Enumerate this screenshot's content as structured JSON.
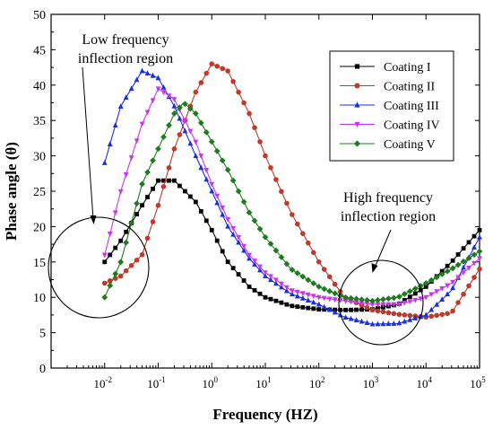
{
  "chart_data": {
    "type": "line",
    "xscale": "log",
    "xlabel": "Frequency (HZ)",
    "ylabel": "Phase angle (θ)",
    "xlim": [
      0.001,
      100000
    ],
    "ylim": [
      0,
      50
    ],
    "grid": false,
    "legend_position": "top-right",
    "yticks": [
      "0",
      "5",
      "10",
      "15",
      "20",
      "25",
      "30",
      "35",
      "40",
      "45",
      "50"
    ],
    "xticks": [
      {
        "value": 0.01,
        "base": "10",
        "exp": "-2"
      },
      {
        "value": 0.1,
        "base": "10",
        "exp": "-1"
      },
      {
        "value": 1,
        "base": "10",
        "exp": "0"
      },
      {
        "value": 10,
        "base": "10",
        "exp": "1"
      },
      {
        "value": 100,
        "base": "10",
        "exp": "2"
      },
      {
        "value": 1000,
        "base": "10",
        "exp": "3"
      },
      {
        "value": 10000,
        "base": "10",
        "exp": "4"
      },
      {
        "value": 100000,
        "base": "10",
        "exp": "5"
      }
    ],
    "series": [
      {
        "name": "Coating I",
        "color": "#000000",
        "marker": "square",
        "points": [
          [
            0.01,
            15
          ],
          [
            0.02,
            18
          ],
          [
            0.05,
            23
          ],
          [
            0.1,
            26.5
          ],
          [
            0.2,
            26.5
          ],
          [
            0.5,
            23.5
          ],
          [
            1,
            19.5
          ],
          [
            2,
            15
          ],
          [
            5,
            11.5
          ],
          [
            10,
            10
          ],
          [
            30,
            8.8
          ],
          [
            100,
            8.3
          ],
          [
            300,
            8.2
          ],
          [
            1000,
            8.3
          ],
          [
            3000,
            9
          ],
          [
            10000,
            11.5
          ],
          [
            30000,
            15
          ],
          [
            100000,
            19.5
          ]
        ]
      },
      {
        "name": "Coating II",
        "color": "#c0392b",
        "marker": "circle",
        "points": [
          [
            0.01,
            12
          ],
          [
            0.02,
            13
          ],
          [
            0.05,
            16
          ],
          [
            0.1,
            23
          ],
          [
            0.2,
            31
          ],
          [
            0.5,
            39
          ],
          [
            1,
            43
          ],
          [
            2,
            42
          ],
          [
            5,
            36
          ],
          [
            10,
            30
          ],
          [
            30,
            22
          ],
          [
            100,
            15
          ],
          [
            300,
            10
          ],
          [
            1000,
            8.2
          ],
          [
            3000,
            7.6
          ],
          [
            10000,
            7.2
          ],
          [
            30000,
            7.8
          ],
          [
            100000,
            14
          ]
        ]
      },
      {
        "name": "Coating III",
        "color": "#1a2fe0",
        "marker": "triangle-up",
        "points": [
          [
            0.01,
            29
          ],
          [
            0.02,
            37
          ],
          [
            0.05,
            42
          ],
          [
            0.1,
            41
          ],
          [
            0.2,
            37
          ],
          [
            0.5,
            30
          ],
          [
            1,
            25
          ],
          [
            2,
            20
          ],
          [
            5,
            15.5
          ],
          [
            10,
            13
          ],
          [
            30,
            10.5
          ],
          [
            100,
            9
          ],
          [
            300,
            7.2
          ],
          [
            1000,
            6.2
          ],
          [
            3000,
            6.3
          ],
          [
            10000,
            7.5
          ],
          [
            30000,
            11
          ],
          [
            100000,
            18.5
          ]
        ]
      },
      {
        "name": "Coating IV",
        "color": "#cc33ee",
        "marker": "triangle-down",
        "points": [
          [
            0.01,
            16
          ],
          [
            0.02,
            25
          ],
          [
            0.05,
            34.5
          ],
          [
            0.1,
            39.5
          ],
          [
            0.2,
            38
          ],
          [
            0.5,
            32
          ],
          [
            1,
            26
          ],
          [
            2,
            21
          ],
          [
            5,
            16
          ],
          [
            10,
            13.5
          ],
          [
            30,
            11
          ],
          [
            100,
            10
          ],
          [
            300,
            9.5
          ],
          [
            1000,
            9
          ],
          [
            3000,
            9
          ],
          [
            10000,
            10
          ],
          [
            30000,
            12
          ],
          [
            100000,
            15.5
          ]
        ]
      },
      {
        "name": "Coating V",
        "color": "#1e7b1e",
        "marker": "diamond",
        "points": [
          [
            0.01,
            10
          ],
          [
            0.02,
            15
          ],
          [
            0.05,
            26
          ],
          [
            0.1,
            31
          ],
          [
            0.2,
            36
          ],
          [
            0.3,
            37.5
          ],
          [
            0.5,
            36
          ],
          [
            1,
            32
          ],
          [
            2,
            28
          ],
          [
            5,
            22
          ],
          [
            10,
            18.5
          ],
          [
            30,
            14
          ],
          [
            100,
            11.5
          ],
          [
            300,
            10
          ],
          [
            1000,
            9.5
          ],
          [
            3000,
            10
          ],
          [
            10000,
            12
          ],
          [
            30000,
            14
          ],
          [
            100000,
            16.5
          ]
        ]
      }
    ],
    "annotations": [
      {
        "id": "low",
        "lines": [
          "Low frequency",
          "inflection region"
        ]
      },
      {
        "id": "high",
        "lines": [
          "High frequency",
          "inflection region"
        ]
      }
    ]
  }
}
